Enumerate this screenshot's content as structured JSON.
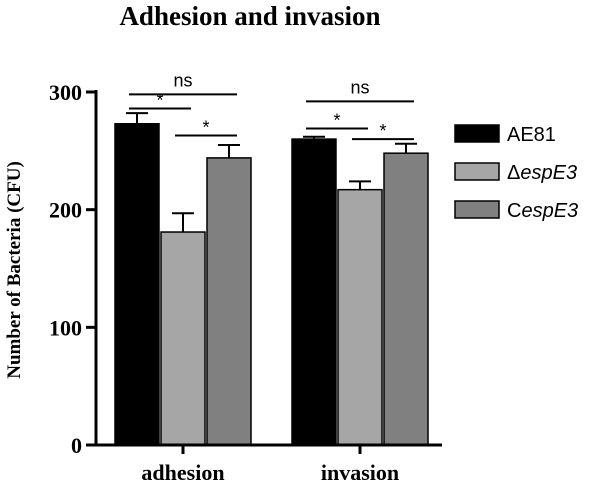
{
  "chart_data": {
    "type": "bar",
    "title": "Adhesion and invasion",
    "ylabel": "Number of Bacteria (CFU)",
    "xlabel": "",
    "ylim": [
      0,
      300
    ],
    "yticks": [
      0,
      100,
      200,
      300
    ],
    "categories": [
      "adhesion",
      "invasion"
    ],
    "series": [
      {
        "name": "AE81",
        "name_prefix": "",
        "name_italic": "",
        "color": "#000000",
        "values": [
          273,
          260
        ],
        "errors": [
          9,
          2
        ]
      },
      {
        "name": "ΔespE3",
        "name_prefix": "Δ",
        "name_italic": "espE3",
        "color": "#a6a6a6",
        "values": [
          181,
          217
        ],
        "errors": [
          16,
          7
        ]
      },
      {
        "name": "CespE3",
        "name_prefix": "C",
        "name_italic": "espE3",
        "color": "#808080",
        "values": [
          244,
          248
        ],
        "errors": [
          11,
          8
        ]
      }
    ],
    "significance": [
      {
        "category": 0,
        "from": 0,
        "to": 2,
        "label": "ns",
        "y": 298
      },
      {
        "category": 0,
        "from": 0,
        "to": 1,
        "label": "*",
        "y": 286
      },
      {
        "category": 0,
        "from": 1,
        "to": 2,
        "label": "*",
        "y": 263
      },
      {
        "category": 1,
        "from": 0,
        "to": 2,
        "label": "ns",
        "y": 292
      },
      {
        "category": 1,
        "from": 0,
        "to": 1,
        "label": "*",
        "y": 269
      },
      {
        "category": 1,
        "from": 1,
        "to": 2,
        "label": "*",
        "y": 260
      }
    ],
    "legend_position": "right"
  }
}
